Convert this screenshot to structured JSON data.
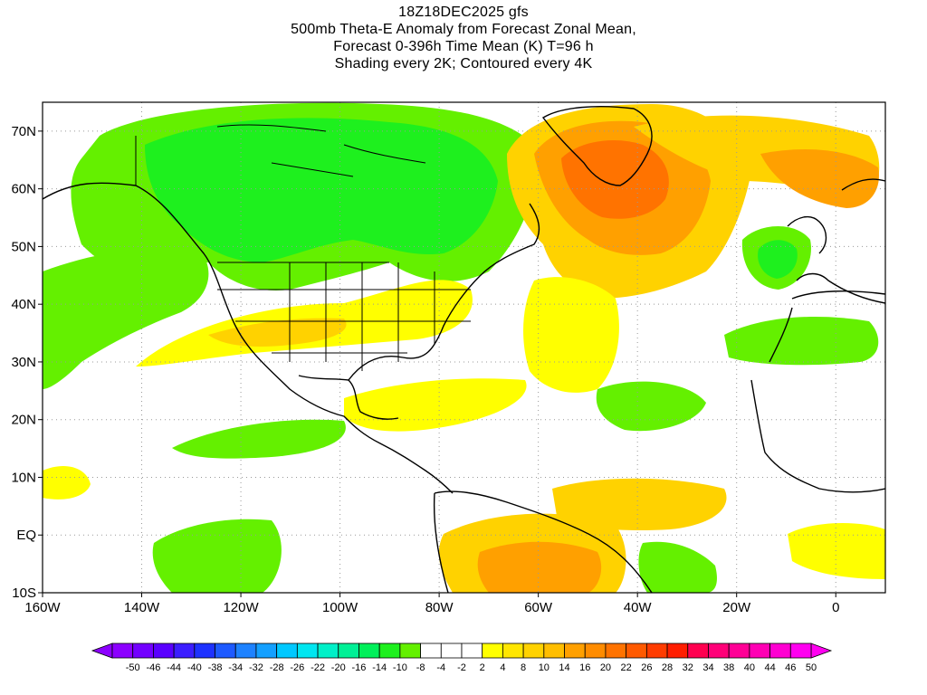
{
  "title": {
    "lines": [
      "18Z18DEC2025 gfs",
      "500mb Theta-E Anomaly from Forecast Zonal Mean,",
      "Forecast 0-396h Time Mean (K) T=96 h",
      "Shading every 2K; Contoured every 4K"
    ]
  },
  "map": {
    "lon_range": [
      -160,
      10
    ],
    "lat_range": [
      -10,
      75
    ],
    "lon_ticks": [
      {
        "value": -160,
        "label": "160W"
      },
      {
        "value": -140,
        "label": "140W"
      },
      {
        "value": -120,
        "label": "120W"
      },
      {
        "value": -100,
        "label": "100W"
      },
      {
        "value": -80,
        "label": "80W"
      },
      {
        "value": -60,
        "label": "60W"
      },
      {
        "value": -40,
        "label": "40W"
      },
      {
        "value": -20,
        "label": "20W"
      },
      {
        "value": 0,
        "label": "0"
      }
    ],
    "lat_ticks": [
      {
        "value": -10,
        "label": "10S"
      },
      {
        "value": 0,
        "label": "EQ"
      },
      {
        "value": 10,
        "label": "10N"
      },
      {
        "value": 20,
        "label": "20N"
      },
      {
        "value": 30,
        "label": "30N"
      },
      {
        "value": 40,
        "label": "40N"
      },
      {
        "value": 50,
        "label": "50N"
      },
      {
        "value": 60,
        "label": "60N"
      },
      {
        "value": 70,
        "label": "70N"
      }
    ],
    "grid": "dotted"
  },
  "colorbar": {
    "labels": [
      "-50",
      "-46",
      "-44",
      "-40",
      "-38",
      "-34",
      "-32",
      "-28",
      "-26",
      "-22",
      "-20",
      "-16",
      "-14",
      "-10",
      "-8",
      "-4",
      "-2",
      "2",
      "4",
      "8",
      "10",
      "14",
      "16",
      "20",
      "22",
      "26",
      "28",
      "32",
      "34",
      "38",
      "40",
      "44",
      "46",
      "50"
    ],
    "colors": [
      "#8c00ff",
      "#7300ff",
      "#5a00ff",
      "#3c1eff",
      "#1e32ff",
      "#1e5aff",
      "#1e82ff",
      "#14a0ff",
      "#00c8ff",
      "#00e6f0",
      "#00f0c8",
      "#00f096",
      "#00f05a",
      "#1ef01e",
      "#64f000",
      "#ffffff",
      "#ffffff",
      "#ffffff",
      "#ffff00",
      "#ffe600",
      "#ffd200",
      "#ffbe00",
      "#ffa000",
      "#ff8c00",
      "#ff7300",
      "#ff5a00",
      "#ff3c00",
      "#ff1e00",
      "#ff0050",
      "#ff0078",
      "#ff0096",
      "#ff00b4",
      "#ff00d2",
      "#ff00f0"
    ]
  }
}
